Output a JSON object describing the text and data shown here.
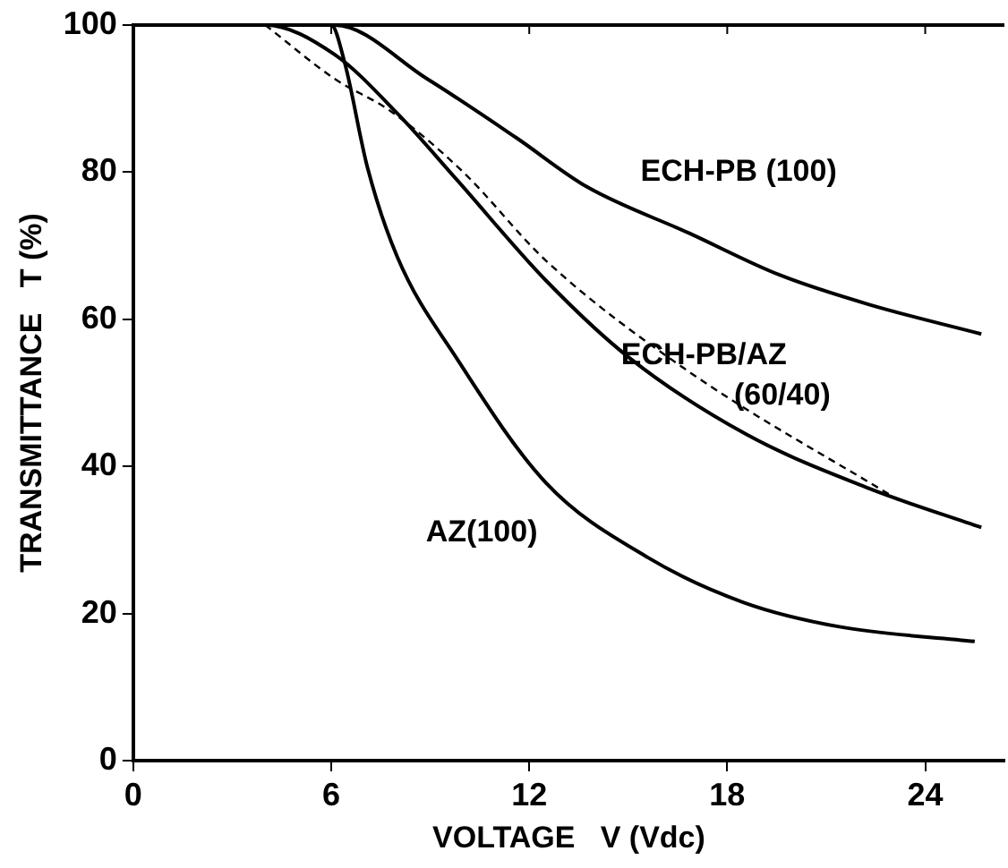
{
  "chart_data": {
    "type": "line",
    "xlabel": "VOLTAGE   V (Vdc)",
    "ylabel": "TRANSMITTANCE   T (%)",
    "xlim": [
      0,
      26.4
    ],
    "xticks": [
      0,
      6,
      12,
      18,
      24
    ],
    "ylim": [
      0,
      100
    ],
    "yticks": [
      0,
      20,
      40,
      60,
      80,
      100
    ],
    "grid": false,
    "legend": false,
    "marker": "none",
    "series": [
      {
        "color": "#000000",
        "x": [
          0,
          6.1,
          8.9,
          11.6,
          13.75,
          16.85,
          19.6,
          22.3,
          25.7
        ],
        "values": [
          100,
          100,
          92.7,
          84.7,
          78,
          71.7,
          66,
          62,
          58
        ]
      },
      {
        "color": "#000000",
        "x": [
          0,
          4,
          6.1,
          8,
          9.8,
          12.5,
          15.05,
          18.6,
          22.3,
          25.7
        ],
        "values": [
          100,
          100,
          96,
          88,
          79,
          65.3,
          54.7,
          44.3,
          37,
          31.7
        ]
      },
      {
        "color": "#000000",
        "line_style": "dashed",
        "x": [
          4,
          6.1,
          7.8,
          10,
          12.5,
          16.8,
          23.2
        ],
        "values": [
          100,
          92.7,
          88.3,
          80,
          68,
          53,
          35.4
        ]
      },
      {
        "color": "#000000",
        "x": [
          0,
          6,
          6.4,
          7.1,
          8,
          9.8,
          12.5,
          15.6,
          18.5,
          21.4,
          25.5
        ],
        "values": [
          100,
          100,
          95,
          80.6,
          68.5,
          54.7,
          37.8,
          27.6,
          21.5,
          18.2,
          16.2
        ]
      }
    ],
    "annotations": [
      "ECH-PB (100)",
      "ECH-PB/AZ",
      "(60/40)",
      "AZ(100)"
    ]
  }
}
